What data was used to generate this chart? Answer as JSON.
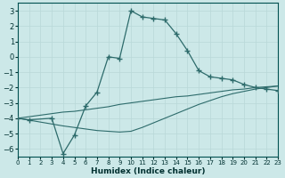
{
  "xlabel": "Humidex (Indice chaleur)",
  "background_color": "#cce8e8",
  "grid_color": "#b8d8d8",
  "line_color": "#2d6b6b",
  "xlim": [
    0,
    23
  ],
  "ylim": [
    -6.5,
    3.5
  ],
  "yticks": [
    -6,
    -5,
    -4,
    -3,
    -2,
    -1,
    0,
    1,
    2,
    3
  ],
  "xticks": [
    0,
    1,
    2,
    3,
    4,
    5,
    6,
    7,
    8,
    9,
    10,
    11,
    12,
    13,
    14,
    15,
    16,
    17,
    18,
    19,
    20,
    21,
    22,
    23
  ],
  "curve_x": [
    0,
    1,
    3,
    4,
    5,
    6,
    7,
    8,
    9,
    10,
    11,
    12,
    13,
    14,
    15,
    16,
    17,
    18,
    19,
    20,
    21,
    22,
    23
  ],
  "curve_y": [
    -4.0,
    -4.1,
    -4.0,
    -6.3,
    -5.1,
    -3.2,
    -2.3,
    0.0,
    -0.1,
    3.0,
    2.6,
    2.5,
    2.4,
    1.5,
    0.4,
    -0.9,
    -1.3,
    -1.4,
    -1.5,
    -1.8,
    -2.0,
    -2.1,
    -2.2
  ],
  "line1_x": [
    0,
    4,
    5,
    6,
    7,
    8,
    9,
    10,
    11,
    12,
    13,
    14,
    15,
    16,
    17,
    18,
    19,
    20,
    21,
    22,
    23
  ],
  "line1_y": [
    -4.0,
    -3.6,
    -3.55,
    -3.45,
    -3.35,
    -3.25,
    -3.1,
    -3.0,
    -2.9,
    -2.8,
    -2.7,
    -2.6,
    -2.55,
    -2.45,
    -2.35,
    -2.25,
    -2.15,
    -2.1,
    -2.0,
    -1.95,
    -1.9
  ],
  "line2_x": [
    0,
    4,
    5,
    6,
    7,
    8,
    9,
    10,
    11,
    12,
    13,
    14,
    15,
    16,
    17,
    18,
    19,
    20,
    21,
    22,
    23
  ],
  "line2_y": [
    -4.0,
    -4.5,
    -4.6,
    -4.7,
    -4.8,
    -4.85,
    -4.9,
    -4.85,
    -4.6,
    -4.3,
    -4.0,
    -3.7,
    -3.4,
    -3.1,
    -2.85,
    -2.6,
    -2.4,
    -2.25,
    -2.1,
    -2.0,
    -1.9
  ]
}
